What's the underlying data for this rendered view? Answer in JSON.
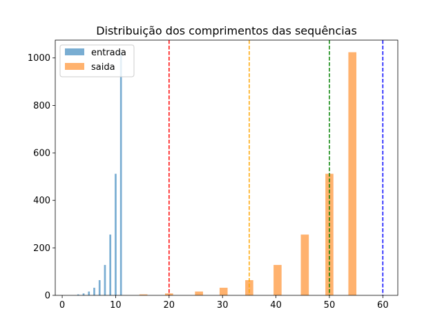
{
  "chart_data": {
    "type": "bar",
    "title": "Distribuição dos comprimentos das sequências",
    "xlabel": "",
    "ylabel": "",
    "xlim": [
      -1.3,
      62.8
    ],
    "ylim": [
      0,
      1075
    ],
    "xticks": [
      0,
      10,
      20,
      30,
      40,
      50,
      60
    ],
    "yticks": [
      0,
      200,
      400,
      600,
      800,
      1000
    ],
    "legend_position": "top-left",
    "series": [
      {
        "name": "entrada",
        "color": "#1f77b4",
        "bar_width": 0.35,
        "x": [
          3,
          4,
          5,
          6,
          7,
          8,
          9,
          10,
          11
        ],
        "values": [
          4,
          8,
          16,
          32,
          64,
          128,
          256,
          512,
          1024
        ]
      },
      {
        "name": "saida",
        "color": "#ff7f0e",
        "bar_width": 1.5,
        "x": [
          15.2,
          20,
          25.6,
          30.2,
          35,
          40.3,
          45.4,
          50,
          54.3
        ],
        "values": [
          4,
          8,
          16,
          32,
          64,
          128,
          256,
          512,
          1024
        ]
      }
    ],
    "reference_lines": [
      {
        "x": 20,
        "color": "#ff0000",
        "style": "dashed"
      },
      {
        "x": 35,
        "color": "#ffa500",
        "style": "dashed"
      },
      {
        "x": 50,
        "color": "#008000",
        "style": "dashed"
      },
      {
        "x": 60,
        "color": "#0000ff",
        "style": "dashed"
      }
    ]
  }
}
